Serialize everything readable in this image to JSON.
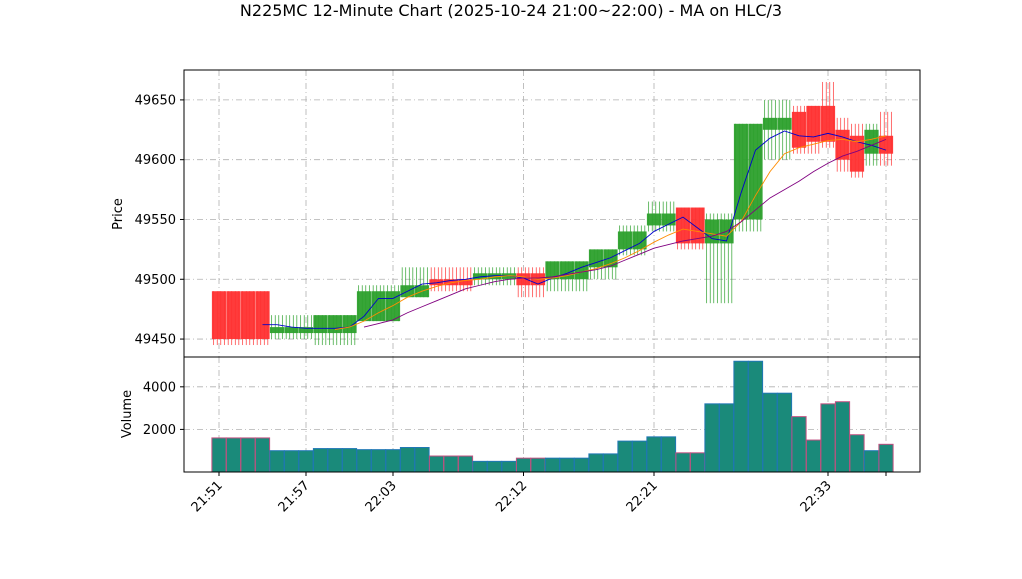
{
  "chart_data": {
    "type": "candlestick",
    "title": "N225MC 12-Minute Chart (2025-10-24 21:00~22:00) - MA on HLC/3",
    "price_panel": {
      "ylabel": "Price",
      "ylim": [
        49435,
        49675
      ],
      "yticks": [
        49450,
        49500,
        49550,
        49600,
        49650
      ],
      "grid": true
    },
    "volume_panel": {
      "ylabel": "Volume",
      "ylim": [
        0,
        5400
      ],
      "yticks": [
        2000,
        4000
      ],
      "grid": true
    },
    "x_tick_labels": [
      "21:51",
      "21:57",
      "22:03",
      "22:12",
      "22:21",
      "22:33"
    ],
    "x_ticks": [
      0,
      6,
      12,
      21,
      30,
      42
    ],
    "candles": [
      {
        "t": 0,
        "open": 49490,
        "high": 49490,
        "low": 49445,
        "close": 49450,
        "volume": 1600
      },
      {
        "t": 1,
        "open": 49490,
        "high": 49490,
        "low": 49445,
        "close": 49450,
        "volume": 1600
      },
      {
        "t": 2,
        "open": 49490,
        "high": 49490,
        "low": 49445,
        "close": 49450,
        "volume": 1600
      },
      {
        "t": 3,
        "open": 49490,
        "high": 49490,
        "low": 49445,
        "close": 49450,
        "volume": 1600
      },
      {
        "t": 4,
        "open": 49455,
        "high": 49470,
        "low": 49450,
        "close": 49460,
        "volume": 1000
      },
      {
        "t": 5,
        "open": 49455,
        "high": 49470,
        "low": 49450,
        "close": 49460,
        "volume": 1000
      },
      {
        "t": 6,
        "open": 49455,
        "high": 49470,
        "low": 49450,
        "close": 49460,
        "volume": 1000
      },
      {
        "t": 7,
        "open": 49455,
        "high": 49470,
        "low": 49445,
        "close": 49470,
        "volume": 1100
      },
      {
        "t": 8,
        "open": 49455,
        "high": 49470,
        "low": 49445,
        "close": 49470,
        "volume": 1100
      },
      {
        "t": 9,
        "open": 49455,
        "high": 49470,
        "low": 49445,
        "close": 49470,
        "volume": 1100
      },
      {
        "t": 10,
        "open": 49465,
        "high": 49495,
        "low": 49465,
        "close": 49490,
        "volume": 1050
      },
      {
        "t": 11,
        "open": 49465,
        "high": 49495,
        "low": 49465,
        "close": 49490,
        "volume": 1050
      },
      {
        "t": 12,
        "open": 49465,
        "high": 49495,
        "low": 49465,
        "close": 49490,
        "volume": 1050
      },
      {
        "t": 13,
        "open": 49485,
        "high": 49510,
        "low": 49485,
        "close": 49495,
        "volume": 1150
      },
      {
        "t": 14,
        "open": 49485,
        "high": 49510,
        "low": 49485,
        "close": 49495,
        "volume": 1150
      },
      {
        "t": 15,
        "open": 49500,
        "high": 49510,
        "low": 49490,
        "close": 49495,
        "volume": 750
      },
      {
        "t": 16,
        "open": 49500,
        "high": 49510,
        "low": 49490,
        "close": 49495,
        "volume": 750
      },
      {
        "t": 17,
        "open": 49500,
        "high": 49510,
        "low": 49490,
        "close": 49495,
        "volume": 750
      },
      {
        "t": 18,
        "open": 49500,
        "high": 49510,
        "low": 49495,
        "close": 49505,
        "volume": 500
      },
      {
        "t": 19,
        "open": 49500,
        "high": 49510,
        "low": 49495,
        "close": 49505,
        "volume": 500
      },
      {
        "t": 20,
        "open": 49500,
        "high": 49510,
        "low": 49495,
        "close": 49505,
        "volume": 500
      },
      {
        "t": 21,
        "open": 49505,
        "high": 49510,
        "low": 49485,
        "close": 49495,
        "volume": 650
      },
      {
        "t": 22,
        "open": 49505,
        "high": 49510,
        "low": 49485,
        "close": 49495,
        "volume": 650
      },
      {
        "t": 23,
        "open": 49500,
        "high": 49515,
        "low": 49490,
        "close": 49515,
        "volume": 650
      },
      {
        "t": 24,
        "open": 49500,
        "high": 49515,
        "low": 49490,
        "close": 49515,
        "volume": 650
      },
      {
        "t": 25,
        "open": 49500,
        "high": 49515,
        "low": 49490,
        "close": 49515,
        "volume": 650
      },
      {
        "t": 26,
        "open": 49510,
        "high": 49525,
        "low": 49500,
        "close": 49525,
        "volume": 850
      },
      {
        "t": 27,
        "open": 49510,
        "high": 49525,
        "low": 49500,
        "close": 49525,
        "volume": 850
      },
      {
        "t": 28,
        "open": 49525,
        "high": 49545,
        "low": 49520,
        "close": 49540,
        "volume": 1450
      },
      {
        "t": 29,
        "open": 49525,
        "high": 49545,
        "low": 49520,
        "close": 49540,
        "volume": 1450
      },
      {
        "t": 30,
        "open": 49545,
        "high": 49565,
        "low": 49540,
        "close": 49555,
        "volume": 1650
      },
      {
        "t": 31,
        "open": 49545,
        "high": 49565,
        "low": 49540,
        "close": 49555,
        "volume": 1650
      },
      {
        "t": 32,
        "open": 49560,
        "high": 49560,
        "low": 49525,
        "close": 49530,
        "volume": 900
      },
      {
        "t": 33,
        "open": 49560,
        "high": 49560,
        "low": 49525,
        "close": 49530,
        "volume": 900
      },
      {
        "t": 34,
        "open": 49530,
        "high": 49555,
        "low": 49480,
        "close": 49550,
        "volume": 3200
      },
      {
        "t": 35,
        "open": 49530,
        "high": 49555,
        "low": 49480,
        "close": 49550,
        "volume": 3200
      },
      {
        "t": 36,
        "open": 49550,
        "high": 49630,
        "low": 49540,
        "close": 49630,
        "volume": 5200
      },
      {
        "t": 37,
        "open": 49550,
        "high": 49630,
        "low": 49540,
        "close": 49630,
        "volume": 5200
      },
      {
        "t": 38,
        "open": 49625,
        "high": 49650,
        "low": 49600,
        "close": 49635,
        "volume": 3700
      },
      {
        "t": 39,
        "open": 49625,
        "high": 49650,
        "low": 49600,
        "close": 49635,
        "volume": 3700
      },
      {
        "t": 40,
        "open": 49640,
        "high": 49645,
        "low": 49605,
        "close": 49610,
        "volume": 2600
      },
      {
        "t": 41,
        "open": 49645,
        "high": 49645,
        "low": 49605,
        "close": 49615,
        "volume": 1500
      },
      {
        "t": 42,
        "open": 49645,
        "high": 49665,
        "low": 49610,
        "close": 49615,
        "volume": 3200
      },
      {
        "t": 43,
        "open": 49625,
        "high": 49635,
        "low": 49590,
        "close": 49600,
        "volume": 3300
      },
      {
        "t": 44,
        "open": 49620,
        "high": 49630,
        "low": 49585,
        "close": 49590,
        "volume": 1750
      },
      {
        "t": 45,
        "open": 49605,
        "high": 49630,
        "low": 49595,
        "close": 49625,
        "volume": 1000
      },
      {
        "t": 46,
        "open": 49620,
        "high": 49640,
        "low": 49595,
        "close": 49605,
        "volume": 1300
      }
    ],
    "ma_lines": [
      {
        "color": "#0000cc",
        "values": [
          null,
          null,
          null,
          49462,
          49462,
          49460,
          49459,
          49459,
          49459,
          49460,
          49469,
          49484,
          49484,
          49490,
          49496,
          49497,
          49499,
          49500,
          49502,
          49503,
          49503,
          49501,
          49496,
          49501,
          49505,
          49510,
          49514,
          49518,
          49524,
          49530,
          49540,
          49546,
          49552,
          49543,
          49534,
          49532,
          49572,
          49608,
          49618,
          49624,
          49620,
          49619,
          49622,
          49619,
          49615,
          49612,
          49608
        ]
      },
      {
        "color": "#ff8c00",
        "values": [
          null,
          null,
          null,
          null,
          null,
          null,
          null,
          null,
          49458,
          49460,
          49465,
          49472,
          49478,
          49485,
          49490,
          49494,
          49497,
          49499,
          49500,
          49502,
          49503,
          49502,
          49500,
          49501,
          49503,
          49506,
          49509,
          49513,
          49518,
          49524,
          49531,
          49537,
          49542,
          49540,
          49538,
          49536,
          49548,
          49570,
          49590,
          49605,
          49610,
          49613,
          49616,
          49617,
          49615,
          49617,
          49620
        ]
      },
      {
        "color": "#800080",
        "values": [
          null,
          null,
          null,
          null,
          null,
          null,
          null,
          null,
          null,
          null,
          49460,
          49463,
          49466,
          49472,
          49477,
          49482,
          49487,
          49492,
          49495,
          49498,
          49500,
          49501,
          49501,
          49502,
          49504,
          49506,
          49508,
          49511,
          49516,
          49521,
          49526,
          49529,
          49532,
          49534,
          49536,
          49540,
          49548,
          49558,
          49568,
          49575,
          49582,
          49590,
          49597,
          49603,
          49607,
          49612,
          49617
        ]
      }
    ],
    "colors": {
      "up": "#2ca02c",
      "down": "#ff3030",
      "grid": "#b0b0b0",
      "vol_fill": "#1a8a7a",
      "vol_edge_down": "#c05080",
      "vol_edge_up": "#1f77b4"
    }
  }
}
